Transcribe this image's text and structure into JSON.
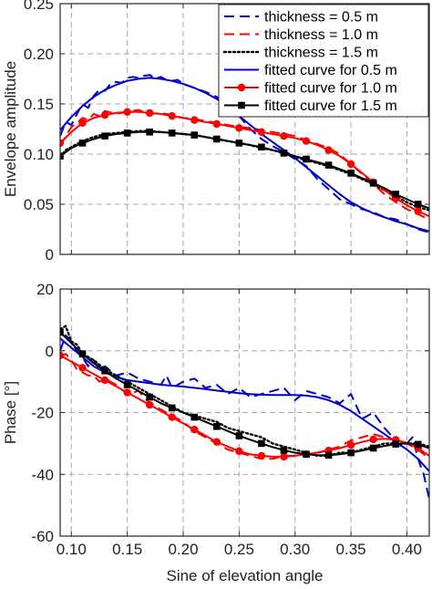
{
  "chart_data": [
    {
      "type": "line",
      "panel": "top",
      "title": "",
      "xlabel": "",
      "ylabel": "Envelope amplitude",
      "xlim": [
        0.09,
        0.42
      ],
      "ylim": [
        0,
        0.25
      ],
      "xticks": [
        0.1,
        0.15,
        0.2,
        0.25,
        0.3,
        0.35,
        0.4
      ],
      "yticks": [
        0,
        0.05,
        0.1,
        0.15,
        0.2,
        0.25
      ],
      "ytick_labels": [
        "0",
        "0.05",
        "0.10",
        "0.15",
        "0.20",
        "0.25"
      ],
      "grid": true,
      "legend_position": "top-right",
      "series": [
        {
          "name": "thickness = 0.5 m",
          "color": "#0000cc",
          "style": "dashed",
          "marker": "none",
          "x": [
            0.09,
            0.095,
            0.1,
            0.105,
            0.11,
            0.115,
            0.12,
            0.125,
            0.13,
            0.135,
            0.14,
            0.145,
            0.15,
            0.155,
            0.16,
            0.165,
            0.17,
            0.175,
            0.18,
            0.185,
            0.19,
            0.195,
            0.2,
            0.205,
            0.21,
            0.22,
            0.23,
            0.24,
            0.25,
            0.26,
            0.27,
            0.28,
            0.29,
            0.3,
            0.31,
            0.32,
            0.33,
            0.34,
            0.35,
            0.36,
            0.37,
            0.38,
            0.39,
            0.4,
            0.41,
            0.42
          ],
          "y": [
            0.118,
            0.132,
            0.129,
            0.14,
            0.15,
            0.146,
            0.158,
            0.164,
            0.163,
            0.17,
            0.172,
            0.171,
            0.176,
            0.177,
            0.176,
            0.178,
            0.179,
            0.175,
            0.177,
            0.174,
            0.173,
            0.174,
            0.17,
            0.168,
            0.166,
            0.162,
            0.157,
            0.148,
            0.138,
            0.125,
            0.115,
            0.108,
            0.102,
            0.095,
            0.088,
            0.075,
            0.065,
            0.055,
            0.05,
            0.045,
            0.042,
            0.037,
            0.035,
            0.03,
            0.025,
            0.022
          ]
        },
        {
          "name": "thickness = 1.0 m",
          "color": "#ff0000",
          "style": "dashed",
          "marker": "none",
          "x": [
            0.09,
            0.095,
            0.1,
            0.105,
            0.11,
            0.115,
            0.12,
            0.125,
            0.13,
            0.14,
            0.15,
            0.16,
            0.17,
            0.18,
            0.19,
            0.2,
            0.21,
            0.22,
            0.23,
            0.24,
            0.25,
            0.26,
            0.27,
            0.28,
            0.29,
            0.3,
            0.31,
            0.32,
            0.33,
            0.34,
            0.35,
            0.36,
            0.37,
            0.38,
            0.39,
            0.4,
            0.41,
            0.42
          ],
          "y": [
            0.108,
            0.118,
            0.127,
            0.131,
            0.136,
            0.134,
            0.14,
            0.138,
            0.143,
            0.14,
            0.142,
            0.144,
            0.14,
            0.141,
            0.139,
            0.136,
            0.135,
            0.133,
            0.131,
            0.129,
            0.127,
            0.126,
            0.124,
            0.122,
            0.12,
            0.118,
            0.114,
            0.11,
            0.106,
            0.1,
            0.09,
            0.08,
            0.07,
            0.06,
            0.052,
            0.045,
            0.04,
            0.035
          ]
        },
        {
          "name": "thickness = 1.5 m",
          "color": "#000000",
          "style": "dotted",
          "marker": "none",
          "x": [
            0.09,
            0.095,
            0.1,
            0.105,
            0.11,
            0.12,
            0.13,
            0.14,
            0.15,
            0.16,
            0.17,
            0.18,
            0.19,
            0.2,
            0.21,
            0.22,
            0.23,
            0.24,
            0.25,
            0.26,
            0.27,
            0.28,
            0.29,
            0.3,
            0.31,
            0.32,
            0.33,
            0.34,
            0.35,
            0.36,
            0.37,
            0.38,
            0.39,
            0.4,
            0.41,
            0.42
          ],
          "y": [
            0.097,
            0.104,
            0.107,
            0.11,
            0.113,
            0.117,
            0.12,
            0.121,
            0.122,
            0.123,
            0.123,
            0.122,
            0.121,
            0.12,
            0.119,
            0.117,
            0.115,
            0.113,
            0.111,
            0.109,
            0.106,
            0.104,
            0.101,
            0.097,
            0.094,
            0.091,
            0.088,
            0.084,
            0.08,
            0.075,
            0.07,
            0.064,
            0.058,
            0.052,
            0.047,
            0.044
          ]
        },
        {
          "name": "fitted curve for 0.5 m",
          "color": "#0000cc",
          "style": "solid",
          "marker": "none",
          "x": [
            0.09,
            0.1,
            0.11,
            0.12,
            0.13,
            0.14,
            0.15,
            0.16,
            0.17,
            0.18,
            0.19,
            0.2,
            0.21,
            0.22,
            0.23,
            0.24,
            0.25,
            0.26,
            0.27,
            0.28,
            0.29,
            0.3,
            0.31,
            0.32,
            0.33,
            0.34,
            0.35,
            0.36,
            0.37,
            0.38,
            0.39,
            0.4,
            0.41,
            0.42
          ],
          "y": [
            0.124,
            0.137,
            0.148,
            0.157,
            0.164,
            0.169,
            0.173,
            0.175,
            0.176,
            0.175,
            0.173,
            0.17,
            0.166,
            0.161,
            0.155,
            0.147,
            0.138,
            0.129,
            0.12,
            0.112,
            0.104,
            0.096,
            0.087,
            0.078,
            0.069,
            0.06,
            0.052,
            0.046,
            0.041,
            0.037,
            0.033,
            0.03,
            0.026,
            0.023
          ]
        },
        {
          "name": "fitted curve for 1.0 m",
          "color": "#ff0000",
          "style": "solid",
          "marker": "circle",
          "x": [
            0.09,
            0.1,
            0.11,
            0.12,
            0.13,
            0.14,
            0.15,
            0.16,
            0.17,
            0.18,
            0.19,
            0.2,
            0.21,
            0.22,
            0.23,
            0.24,
            0.25,
            0.26,
            0.27,
            0.28,
            0.29,
            0.3,
            0.31,
            0.32,
            0.33,
            0.34,
            0.35,
            0.36,
            0.37,
            0.38,
            0.39,
            0.4,
            0.41,
            0.42
          ],
          "y": [
            0.111,
            0.122,
            0.131,
            0.136,
            0.139,
            0.141,
            0.142,
            0.142,
            0.141,
            0.14,
            0.138,
            0.136,
            0.134,
            0.132,
            0.13,
            0.128,
            0.126,
            0.124,
            0.122,
            0.12,
            0.118,
            0.116,
            0.113,
            0.109,
            0.104,
            0.098,
            0.09,
            0.081,
            0.072,
            0.064,
            0.056,
            0.049,
            0.043,
            0.038
          ]
        },
        {
          "name": "fitted curve for 1.5 m",
          "color": "#000000",
          "style": "solid",
          "marker": "square",
          "x": [
            0.09,
            0.1,
            0.11,
            0.12,
            0.13,
            0.14,
            0.15,
            0.16,
            0.17,
            0.18,
            0.19,
            0.2,
            0.21,
            0.22,
            0.23,
            0.24,
            0.25,
            0.26,
            0.27,
            0.28,
            0.29,
            0.3,
            0.31,
            0.32,
            0.33,
            0.34,
            0.35,
            0.36,
            0.37,
            0.38,
            0.39,
            0.4,
            0.41,
            0.42
          ],
          "y": [
            0.098,
            0.106,
            0.111,
            0.115,
            0.118,
            0.12,
            0.121,
            0.122,
            0.122,
            0.122,
            0.121,
            0.12,
            0.119,
            0.117,
            0.115,
            0.113,
            0.111,
            0.109,
            0.107,
            0.104,
            0.101,
            0.098,
            0.095,
            0.092,
            0.089,
            0.085,
            0.081,
            0.076,
            0.071,
            0.066,
            0.06,
            0.055,
            0.05,
            0.046
          ]
        }
      ]
    },
    {
      "type": "line",
      "panel": "bottom",
      "title": "",
      "xlabel": "Sine of elevation angle",
      "ylabel": "Phase [°]",
      "xlim": [
        0.09,
        0.42
      ],
      "ylim": [
        -60,
        20
      ],
      "xticks": [
        0.1,
        0.15,
        0.2,
        0.25,
        0.3,
        0.35,
        0.4
      ],
      "xtick_labels": [
        "0.10",
        "0.15",
        "0.20",
        "0.25",
        "0.30",
        "0.35",
        "0.40"
      ],
      "yticks": [
        -60,
        -40,
        -20,
        0,
        20
      ],
      "ytick_labels": [
        "-60",
        "-40",
        "-20",
        "0",
        "20"
      ],
      "grid": true,
      "series": [
        {
          "name": "thickness = 0.5 m",
          "color": "#0000cc",
          "style": "dashed",
          "marker": "none",
          "x": [
            0.09,
            0.095,
            0.1,
            0.105,
            0.11,
            0.115,
            0.12,
            0.125,
            0.13,
            0.14,
            0.15,
            0.16,
            0.17,
            0.18,
            0.185,
            0.19,
            0.2,
            0.21,
            0.22,
            0.23,
            0.24,
            0.25,
            0.26,
            0.27,
            0.28,
            0.29,
            0.3,
            0.31,
            0.32,
            0.33,
            0.34,
            0.35,
            0.36,
            0.37,
            0.38,
            0.39,
            0.395,
            0.4,
            0.405,
            0.41,
            0.415,
            0.42
          ],
          "y": [
            0,
            5,
            3,
            0,
            -2,
            -5,
            -3,
            -6,
            -5,
            -8,
            -7,
            -9,
            -10,
            -11,
            -8,
            -12,
            -10,
            -9,
            -12,
            -11,
            -14,
            -12,
            -15,
            -14,
            -13,
            -12,
            -16,
            -13,
            -14,
            -15,
            -17,
            -14,
            -22,
            -20,
            -25,
            -29,
            -31,
            -30,
            -28,
            -35,
            -40,
            -48
          ]
        },
        {
          "name": "thickness = 1.0 m",
          "color": "#ff0000",
          "style": "dashed",
          "marker": "none",
          "x": [
            0.09,
            0.095,
            0.1,
            0.105,
            0.11,
            0.115,
            0.12,
            0.125,
            0.13,
            0.14,
            0.15,
            0.16,
            0.17,
            0.18,
            0.19,
            0.2,
            0.21,
            0.22,
            0.23,
            0.24,
            0.25,
            0.26,
            0.27,
            0.28,
            0.29,
            0.3,
            0.31,
            0.32,
            0.33,
            0.34,
            0.35,
            0.36,
            0.37,
            0.38,
            0.39,
            0.4,
            0.41,
            0.42
          ],
          "y": [
            -2,
            -1,
            -3,
            -6,
            -7,
            -8,
            -8,
            -10,
            -9,
            -11,
            -14,
            -13,
            -17,
            -19,
            -21,
            -23,
            -26,
            -28,
            -30,
            -32,
            -33,
            -34,
            -35,
            -35,
            -34,
            -34,
            -33,
            -33,
            -32,
            -31,
            -29,
            -28,
            -27,
            -28,
            -29,
            -30,
            -32,
            -35
          ]
        },
        {
          "name": "thickness = 1.5 m",
          "color": "#000000",
          "style": "dotted",
          "marker": "none",
          "x": [
            0.09,
            0.095,
            0.1,
            0.105,
            0.11,
            0.12,
            0.13,
            0.14,
            0.15,
            0.16,
            0.17,
            0.18,
            0.19,
            0.2,
            0.21,
            0.22,
            0.23,
            0.24,
            0.25,
            0.26,
            0.27,
            0.28,
            0.29,
            0.3,
            0.31,
            0.32,
            0.33,
            0.34,
            0.35,
            0.36,
            0.37,
            0.38,
            0.39,
            0.4,
            0.41,
            0.42
          ],
          "y": [
            7,
            8,
            3,
            2,
            -1,
            -3,
            -6,
            -8,
            -10,
            -12,
            -14,
            -16,
            -18,
            -20,
            -21,
            -22,
            -23,
            -25,
            -26,
            -27,
            -28,
            -30,
            -31,
            -32,
            -33,
            -34,
            -34,
            -33,
            -33,
            -32,
            -31,
            -30,
            -30,
            -30,
            -30,
            -31
          ]
        },
        {
          "name": "fitted curve for 0.5 m",
          "color": "#0000cc",
          "style": "solid",
          "marker": "none",
          "x": [
            0.09,
            0.1,
            0.11,
            0.12,
            0.13,
            0.14,
            0.15,
            0.16,
            0.17,
            0.18,
            0.19,
            0.2,
            0.21,
            0.22,
            0.23,
            0.24,
            0.25,
            0.26,
            0.27,
            0.28,
            0.29,
            0.3,
            0.31,
            0.32,
            0.33,
            0.34,
            0.35,
            0.36,
            0.37,
            0.38,
            0.39,
            0.4,
            0.41,
            0.42
          ],
          "y": [
            4,
            1,
            -2,
            -5,
            -7,
            -8.5,
            -9.5,
            -10,
            -10.5,
            -11,
            -11.3,
            -11.6,
            -12,
            -12.4,
            -12.9,
            -13.3,
            -13.7,
            -14,
            -14.2,
            -14.3,
            -14.3,
            -14.3,
            -14.5,
            -15,
            -16,
            -17.5,
            -19.5,
            -22,
            -24.5,
            -27,
            -29.5,
            -32,
            -35,
            -39
          ]
        },
        {
          "name": "fitted curve for 1.0 m",
          "color": "#ff0000",
          "style": "solid",
          "marker": "circle",
          "x": [
            0.09,
            0.1,
            0.11,
            0.12,
            0.13,
            0.14,
            0.15,
            0.16,
            0.17,
            0.18,
            0.19,
            0.2,
            0.21,
            0.22,
            0.23,
            0.24,
            0.25,
            0.26,
            0.27,
            0.28,
            0.29,
            0.3,
            0.31,
            0.32,
            0.33,
            0.34,
            0.35,
            0.36,
            0.37,
            0.38,
            0.39,
            0.4,
            0.41,
            0.42
          ],
          "y": [
            -1.5,
            -3.5,
            -5.5,
            -7.5,
            -9.5,
            -11.5,
            -13.5,
            -15.5,
            -17.5,
            -19.5,
            -21.5,
            -23.5,
            -25.5,
            -27.5,
            -29.5,
            -31,
            -32.5,
            -33.5,
            -34,
            -34.3,
            -34.3,
            -34,
            -33.5,
            -33,
            -32.3,
            -31.5,
            -30.5,
            -29.5,
            -28.7,
            -28.5,
            -28.8,
            -29.8,
            -31.5,
            -34
          ]
        },
        {
          "name": "fitted curve for 1.5 m",
          "color": "#000000",
          "style": "solid",
          "marker": "square",
          "x": [
            0.09,
            0.1,
            0.11,
            0.12,
            0.13,
            0.14,
            0.15,
            0.16,
            0.17,
            0.18,
            0.19,
            0.2,
            0.21,
            0.22,
            0.23,
            0.24,
            0.25,
            0.26,
            0.27,
            0.28,
            0.29,
            0.3,
            0.31,
            0.32,
            0.33,
            0.34,
            0.35,
            0.36,
            0.37,
            0.38,
            0.39,
            0.4,
            0.41,
            0.42
          ],
          "y": [
            6,
            2.5,
            -1,
            -4,
            -6.5,
            -9,
            -11,
            -13,
            -15,
            -17,
            -18.5,
            -20,
            -21.5,
            -23,
            -24.5,
            -26,
            -27.5,
            -28.8,
            -30,
            -31.2,
            -32.2,
            -33,
            -33.5,
            -33.8,
            -33.8,
            -33.5,
            -33,
            -32.3,
            -31.5,
            -30.8,
            -30.2,
            -30,
            -30.3,
            -31.5
          ]
        }
      ]
    }
  ]
}
